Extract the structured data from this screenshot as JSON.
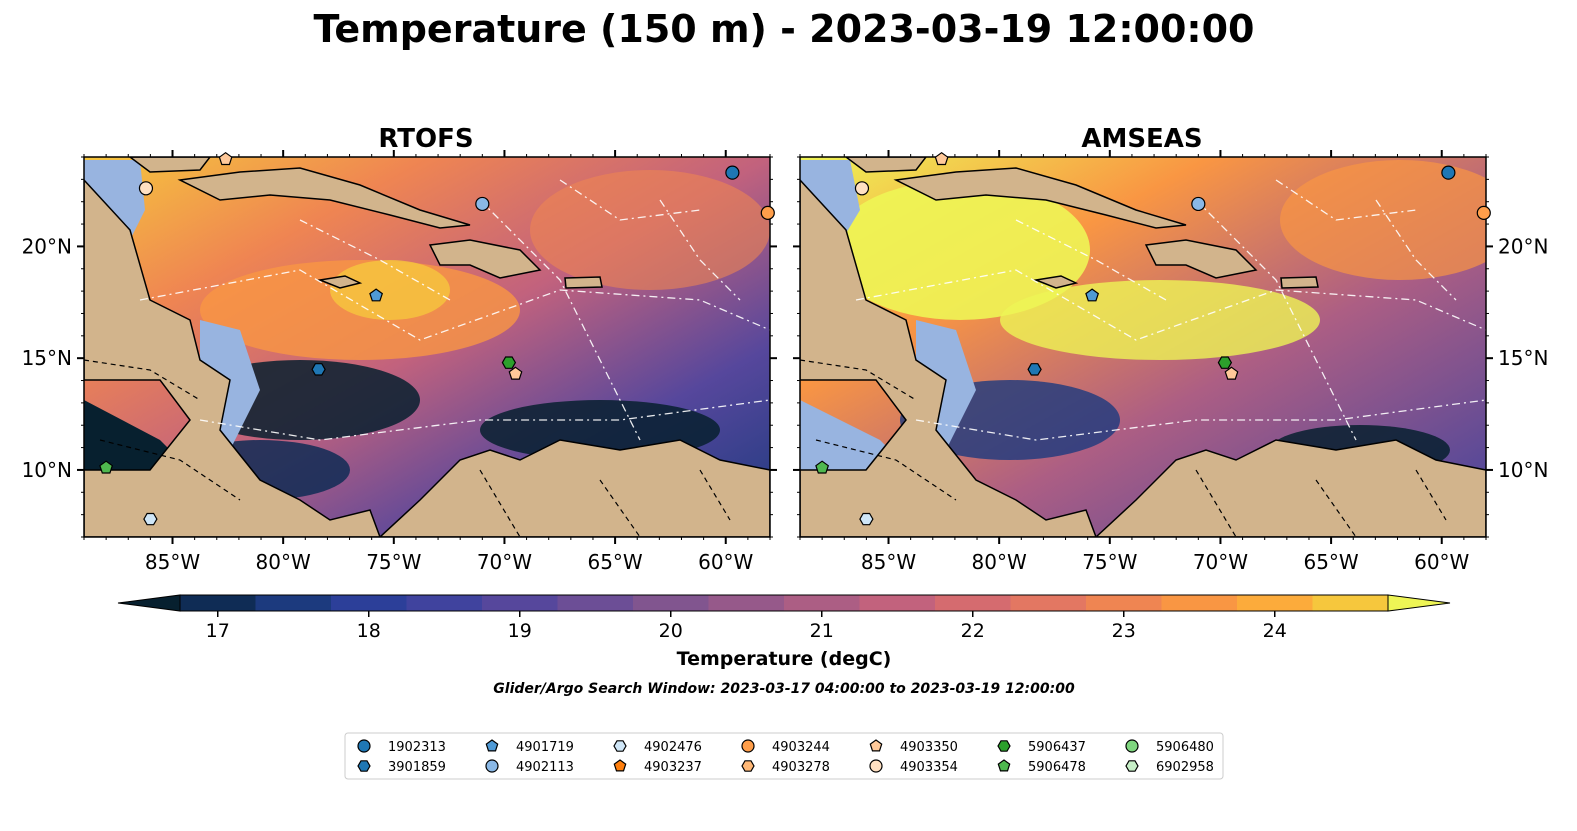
{
  "title": "Temperature (150 m) - 2023-03-19 12:00:00",
  "panels": [
    {
      "title": "RTOFS"
    },
    {
      "title": "AMSEAS"
    }
  ],
  "map": {
    "lon_range": [
      -89,
      -58
    ],
    "lat_range": [
      7,
      24
    ],
    "lon_ticks": [
      "85°W",
      "80°W",
      "75°W",
      "70°W",
      "65°W",
      "60°W"
    ],
    "lon_tick_values": [
      -85,
      -80,
      -75,
      -70,
      -65,
      -60
    ],
    "lat_ticks": [
      "20°N",
      "15°N",
      "10°N"
    ],
    "lat_tick_values": [
      20,
      15,
      10
    ],
    "colors": {
      "land": "#d2b48c",
      "shallow": "#98b4e0",
      "border": "#000000",
      "eez": "#ffffff"
    }
  },
  "colorbar": {
    "label": "Temperature (degC)",
    "min": 16.75,
    "max": 24.75,
    "ticks": [
      "17",
      "18",
      "19",
      "20",
      "21",
      "22",
      "23",
      "24"
    ],
    "tick_values": [
      17,
      18,
      19,
      20,
      21,
      22,
      23,
      24
    ],
    "colors": [
      "#07202f",
      "#0f2c55",
      "#1c3a7e",
      "#2c3f99",
      "#40439e",
      "#56479c",
      "#6c4e96",
      "#81558f",
      "#96598a",
      "#ac5e84",
      "#c2627d",
      "#d56b6f",
      "#e37762",
      "#ef8552",
      "#f99643",
      "#fcab3b",
      "#f6c73d",
      "#eef555"
    ]
  },
  "search_window": "Glider/Argo Search Window: 2023-03-17 04:00:00 to 2023-03-19 12:00:00",
  "legend": [
    {
      "label": "1902313",
      "marker": "circle",
      "color": "#1f77b4"
    },
    {
      "label": "3901859",
      "marker": "hexagon",
      "color": "#1f77b4"
    },
    {
      "label": "4901719",
      "marker": "pentagon",
      "color": "#4f9ad6"
    },
    {
      "label": "4902113",
      "marker": "circle",
      "color": "#8ab8e6"
    },
    {
      "label": "4902476",
      "marker": "hexagon",
      "color": "#cfe6f7"
    },
    {
      "label": "4903237",
      "marker": "pentagon",
      "color": "#ff7f0e"
    },
    {
      "label": "4903244",
      "marker": "circle",
      "color": "#ff9e4a"
    },
    {
      "label": "4903278",
      "marker": "hexagon",
      "color": "#ffb877"
    },
    {
      "label": "4903350",
      "marker": "pentagon",
      "color": "#ffc99a"
    },
    {
      "label": "4903354",
      "marker": "circle",
      "color": "#ffe0c2"
    },
    {
      "label": "5906437",
      "marker": "hexagon",
      "color": "#2ca02c"
    },
    {
      "label": "5906478",
      "marker": "pentagon",
      "color": "#4fb84f"
    },
    {
      "label": "5906480",
      "marker": "circle",
      "color": "#7fd67f"
    },
    {
      "label": "6902958",
      "marker": "hexagon",
      "color": "#c7efc7"
    }
  ],
  "platforms": [
    {
      "id": "1902313",
      "lon": -59.7,
      "lat": 23.3
    },
    {
      "id": "4903354",
      "lon": -86.2,
      "lat": 22.6
    },
    {
      "id": "4902113",
      "lon": -71.0,
      "lat": 21.9
    },
    {
      "id": "4903244",
      "lon": -58.1,
      "lat": 21.5
    },
    {
      "id": "4903350",
      "lon": -82.6,
      "lat": 23.9
    },
    {
      "id": "4901719",
      "lon": -75.8,
      "lat": 17.8
    },
    {
      "id": "3901859",
      "lon": -78.4,
      "lat": 14.5
    },
    {
      "id": "5906437",
      "lon": -69.8,
      "lat": 14.8
    },
    {
      "id": "4903350",
      "lon": -69.5,
      "lat": 14.3
    },
    {
      "id": "5906478",
      "lon": -88.0,
      "lat": 10.1
    },
    {
      "id": "4902476",
      "lon": -86.0,
      "lat": 7.8
    }
  ]
}
